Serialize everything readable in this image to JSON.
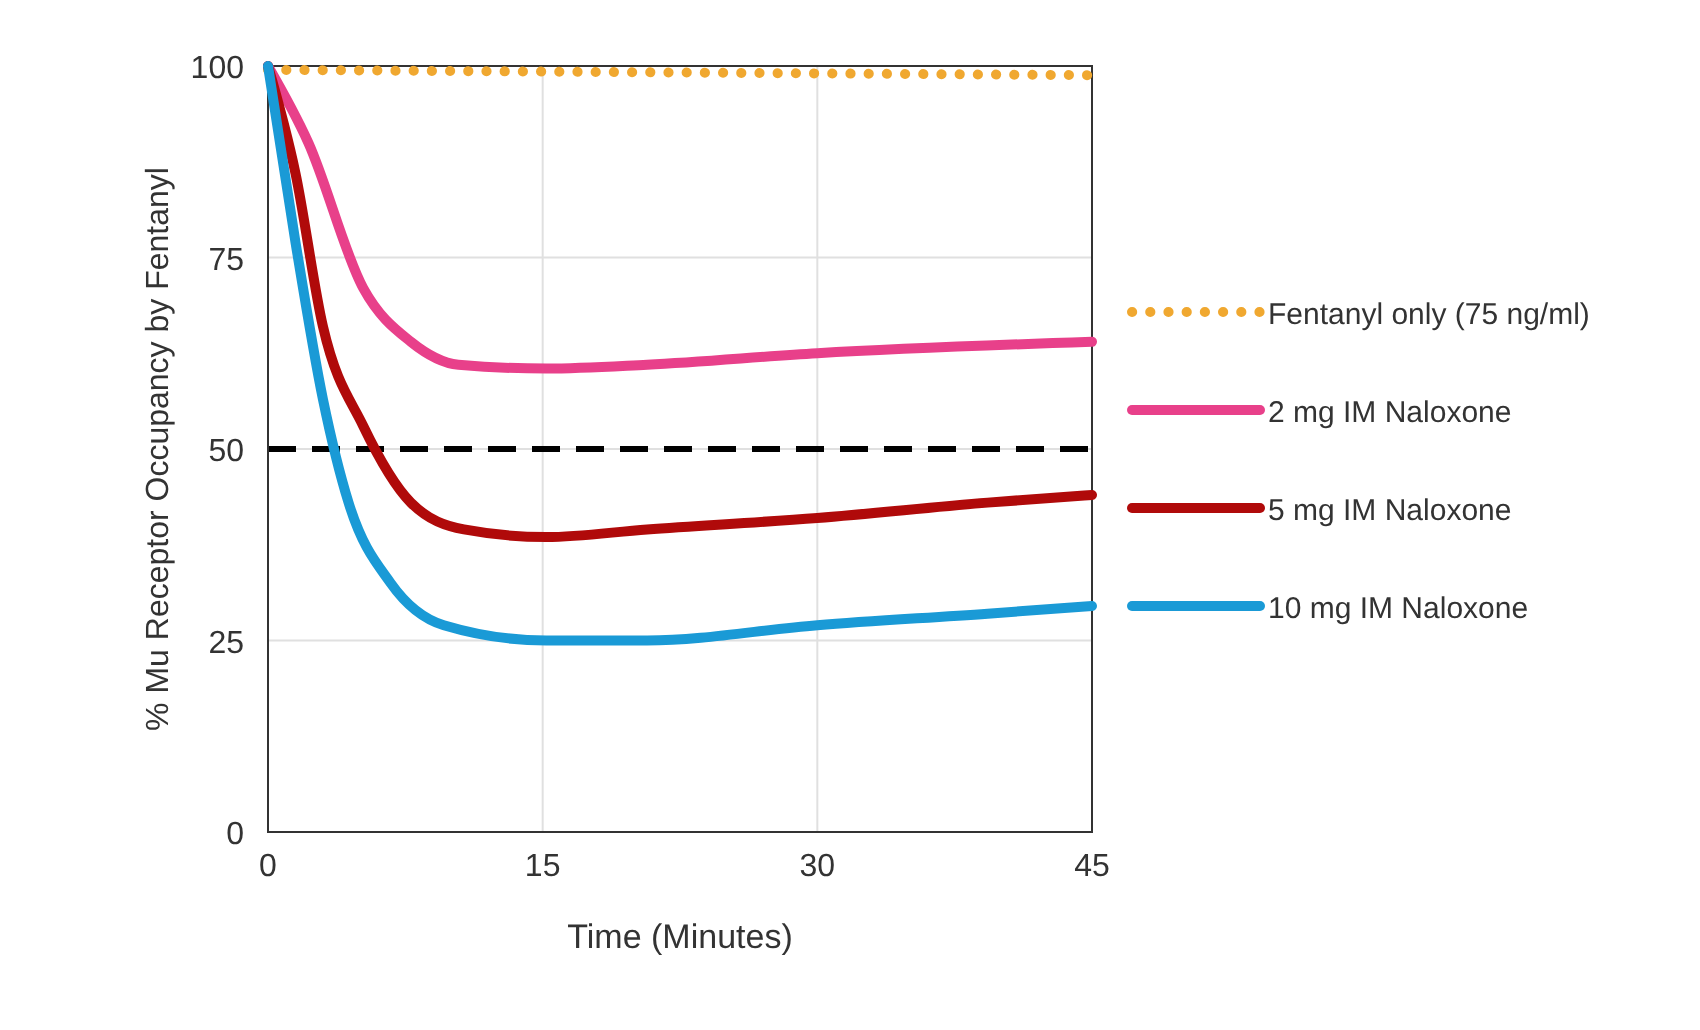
{
  "chart_data": {
    "type": "line",
    "xlabel": "Time (Minutes)",
    "ylabel": "% Mu Receptor Occupancy by Fentanyl",
    "xlim": [
      0,
      45
    ],
    "xticks": [
      0,
      15,
      30,
      45
    ],
    "ylim": [
      0,
      100
    ],
    "yticks": [
      0,
      25,
      50,
      75,
      100
    ],
    "grid": true,
    "legend": "right",
    "ref_lines": [
      {
        "axis": "y",
        "value": 50,
        "color": "#000000",
        "line_style": "dashed"
      }
    ],
    "series": [
      {
        "name": "Fentanyl only (75 ng/ml)",
        "color": "#f0a830",
        "line_style": "dotted",
        "x": [
          0,
          45
        ],
        "values": [
          99.5,
          98.8
        ]
      },
      {
        "name": "2 mg IM Naloxone",
        "color": "#e8408a",
        "line_style": "solid",
        "x": [
          0,
          2.2,
          5.2,
          7.8,
          10.4,
          15.2,
          20.7,
          30,
          45
        ],
        "values": [
          100,
          90,
          71,
          64,
          61,
          60.5,
          61,
          62.5,
          64
        ]
      },
      {
        "name": "5 mg IM Naloxone",
        "color": "#b00a0a",
        "line_style": "solid",
        "x": [
          0,
          1.5,
          3,
          5.2,
          7.8,
          10.7,
          15.2,
          20.7,
          30,
          39.3,
          45
        ],
        "values": [
          100,
          86,
          66,
          53,
          43,
          39.5,
          38.5,
          39.5,
          41,
          43,
          44
        ]
      },
      {
        "name": "10 mg IM Naloxone",
        "color": "#1a9ad6",
        "line_style": "solid",
        "x": [
          0,
          1.5,
          3,
          4.4,
          6.7,
          9.6,
          15.2,
          20.7,
          30,
          39.3,
          45
        ],
        "values": [
          100,
          77,
          56.5,
          43,
          32.5,
          27,
          25,
          25,
          27,
          28.5,
          29.5
        ]
      }
    ]
  }
}
